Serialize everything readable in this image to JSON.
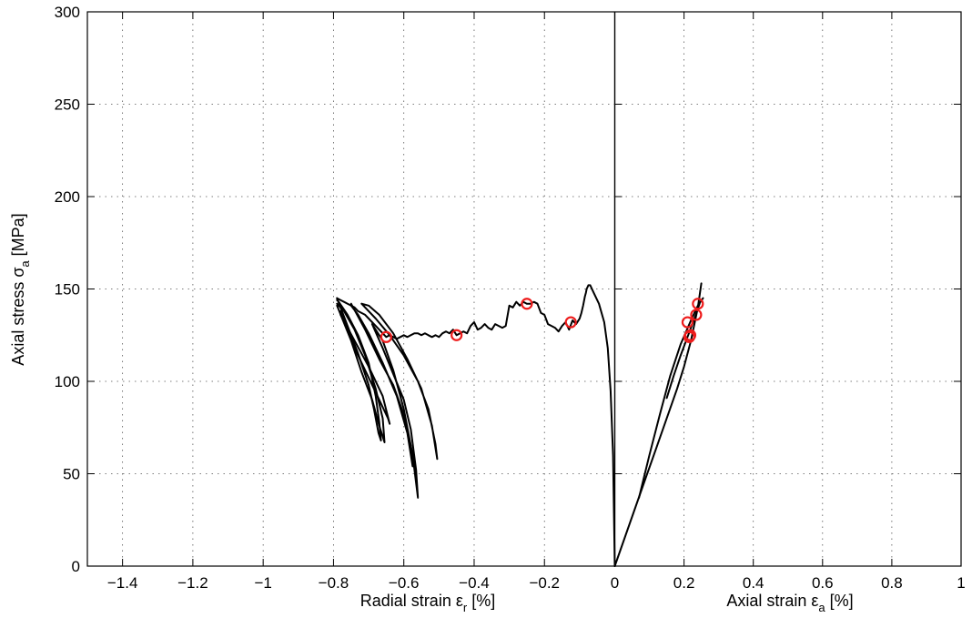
{
  "chart_data": {
    "type": "line",
    "panels": [
      {
        "name": "radial",
        "xlim": [
          -1.5,
          0
        ],
        "xticks": [
          -1.4,
          -1.2,
          -1,
          -0.8,
          -0.6,
          -0.4,
          -0.2,
          0
        ],
        "xtick_labels": [
          "−1.4",
          "−1.2",
          "−1",
          "−0.8",
          "−0.6",
          "−0.4",
          "−0.2",
          "0"
        ],
        "xlabel_main": "Radial strain ε",
        "xlabel_sub": "r",
        "xlabel_tail": " [%]"
      },
      {
        "name": "axial",
        "xlim": [
          0,
          1
        ],
        "xticks": [
          0.2,
          0.4,
          0.6,
          0.8,
          1
        ],
        "xtick_labels": [
          "0.2",
          "0.4",
          "0.6",
          "0.8",
          "1"
        ],
        "xlabel_main": "Axial strain ε",
        "xlabel_sub": "a",
        "xlabel_tail": " [%]"
      }
    ],
    "ylim": [
      0,
      300
    ],
    "yticks": [
      0,
      50,
      100,
      150,
      200,
      250,
      300
    ],
    "ytick_labels": [
      "0",
      "50",
      "100",
      "150",
      "200",
      "250",
      "300"
    ],
    "ylabel_main": "Axial stress σ",
    "ylabel_sub": "a",
    "ylabel_tail": " [MPa]",
    "grid": true,
    "colors": {
      "curve": "#000000",
      "marker": "#ee1c1c"
    },
    "series": [
      {
        "panel": "radial",
        "style": "line",
        "x": [
          0,
          -0.005,
          -0.012,
          -0.02,
          -0.03,
          -0.045,
          -0.06,
          -0.07,
          -0.075,
          -0.08,
          -0.082,
          -0.085,
          -0.09,
          -0.095,
          -0.1,
          -0.11,
          -0.12,
          -0.13,
          -0.14,
          -0.15,
          -0.16,
          -0.17,
          -0.18,
          -0.19,
          -0.2,
          -0.21,
          -0.22,
          -0.23,
          -0.24,
          -0.25,
          -0.26,
          -0.27,
          -0.28,
          -0.29,
          -0.3,
          -0.31,
          -0.32,
          -0.33,
          -0.34,
          -0.35,
          -0.36,
          -0.37,
          -0.38,
          -0.39,
          -0.4,
          -0.41,
          -0.42,
          -0.43,
          -0.44,
          -0.45,
          -0.46,
          -0.47,
          -0.48,
          -0.49,
          -0.5,
          -0.51,
          -0.52,
          -0.53,
          -0.54,
          -0.55,
          -0.56,
          -0.57,
          -0.58,
          -0.59,
          -0.6,
          -0.61,
          -0.62,
          -0.63,
          -0.64,
          -0.65,
          -0.66,
          -0.67,
          -0.68,
          -0.69,
          -0.7,
          -0.71,
          -0.72,
          -0.73,
          -0.74,
          -0.75,
          -0.76,
          -0.77,
          -0.78,
          -0.79
        ],
        "y": [
          0,
          60,
          95,
          118,
          132,
          142,
          148,
          152,
          152,
          150,
          148,
          146,
          141,
          137,
          134,
          131,
          133,
          128,
          132,
          130,
          127,
          129,
          130,
          131,
          136,
          137,
          142,
          143,
          142,
          142,
          143,
          141,
          143,
          140,
          141,
          130,
          129,
          130,
          131,
          128,
          129,
          131,
          129,
          128,
          132,
          130,
          126,
          127,
          126,
          125,
          128,
          126,
          127,
          126,
          124,
          125,
          124,
          125,
          126,
          125,
          126,
          126,
          125,
          124,
          125,
          124,
          123,
          124,
          125,
          124,
          126,
          128,
          130,
          132,
          134,
          136,
          137,
          138,
          140,
          141,
          142,
          143,
          144,
          145
        ]
      },
      {
        "panel": "radial",
        "style": "line",
        "x": [
          -0.79,
          -0.76,
          -0.73,
          -0.7,
          -0.685,
          -0.672,
          -0.665,
          -0.67,
          -0.68,
          -0.7,
          -0.73,
          -0.76,
          -0.785,
          -0.79
        ],
        "y": [
          145,
          130,
          115,
          98,
          85,
          72,
          68,
          78,
          92,
          110,
          125,
          136,
          143,
          144
        ]
      },
      {
        "panel": "radial",
        "style": "line",
        "x": [
          -0.79,
          -0.75,
          -0.72,
          -0.69,
          -0.67,
          -0.655,
          -0.66,
          -0.68,
          -0.71,
          -0.74,
          -0.77,
          -0.79
        ],
        "y": [
          141,
          122,
          105,
          90,
          76,
          67,
          80,
          96,
          114,
          128,
          138,
          142
        ]
      },
      {
        "panel": "radial",
        "style": "line",
        "x": [
          -0.78,
          -0.74,
          -0.7,
          -0.67,
          -0.645,
          -0.64,
          -0.66,
          -0.7,
          -0.74,
          -0.78
        ],
        "y": [
          138,
          118,
          102,
          90,
          80,
          77,
          92,
          108,
          122,
          136
        ]
      },
      {
        "panel": "radial",
        "style": "line",
        "x": [
          -0.75,
          -0.71,
          -0.67,
          -0.63,
          -0.6,
          -0.58,
          -0.575,
          -0.59,
          -0.62,
          -0.66,
          -0.7,
          -0.73,
          -0.75
        ],
        "y": [
          142,
          128,
          112,
          98,
          82,
          65,
          54,
          72,
          92,
          110,
          126,
          136,
          141
        ]
      },
      {
        "panel": "radial",
        "style": "line",
        "x": [
          -0.69,
          -0.66,
          -0.63,
          -0.6,
          -0.58,
          -0.565,
          -0.56,
          -0.575,
          -0.6,
          -0.63,
          -0.66,
          -0.69
        ],
        "y": [
          131,
          118,
          104,
          90,
          74,
          52,
          37,
          60,
          85,
          106,
          122,
          131
        ]
      },
      {
        "panel": "radial",
        "style": "line",
        "x": [
          -0.72,
          -0.68,
          -0.64,
          -0.6,
          -0.56,
          -0.53,
          -0.51,
          -0.505,
          -0.52,
          -0.55,
          -0.59,
          -0.63,
          -0.67,
          -0.7,
          -0.72
        ],
        "y": [
          142,
          134,
          125,
          114,
          100,
          85,
          66,
          58,
          76,
          96,
          112,
          126,
          136,
          141,
          142
        ]
      },
      {
        "panel": "axial",
        "style": "line",
        "x": [
          0,
          0.03,
          0.06,
          0.09,
          0.12,
          0.15,
          0.18,
          0.2,
          0.22,
          0.24,
          0.25
        ],
        "y": [
          0,
          16,
          32,
          48,
          64,
          80,
          96,
          108,
          122,
          140,
          153
        ]
      },
      {
        "panel": "axial",
        "style": "line",
        "x": [
          0.07,
          0.1,
          0.13,
          0.16,
          0.19,
          0.22,
          0.24,
          0.255
        ],
        "y": [
          37,
          60,
          82,
          103,
          120,
          133,
          141,
          145
        ]
      },
      {
        "panel": "axial",
        "style": "line",
        "x": [
          0.15,
          0.17,
          0.19,
          0.21,
          0.23,
          0.245
        ],
        "y": [
          91,
          103,
          114,
          124,
          134,
          142
        ]
      },
      {
        "panel": "radial",
        "style": "marker",
        "x": [
          -0.65,
          -0.45,
          -0.25,
          -0.125
        ],
        "y": [
          124,
          125,
          142,
          132
        ]
      },
      {
        "panel": "axial",
        "style": "marker",
        "x": [
          0.215,
          0.218,
          0.21,
          0.235,
          0.24
        ],
        "y": [
          124,
          125,
          132,
          136,
          142
        ]
      }
    ]
  }
}
